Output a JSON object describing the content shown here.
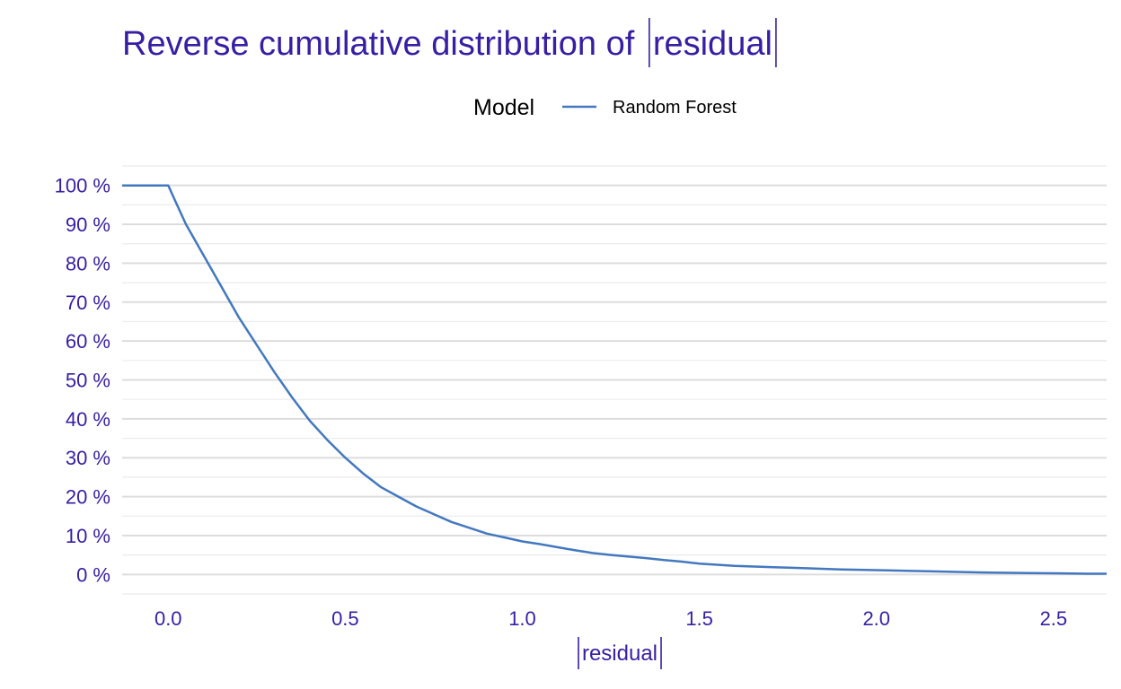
{
  "chart_data": {
    "type": "line",
    "title": "Reverse cumulative distribution of |residual|",
    "xlabel": "|residual|",
    "ylabel": "",
    "xlim": [
      -0.13,
      2.65
    ],
    "ylim": [
      -0.05,
      1.05
    ],
    "x_ticks": [
      0.0,
      0.5,
      1.0,
      1.5,
      2.0,
      2.5
    ],
    "x_tick_labels": [
      "0.0",
      "0.5",
      "1.0",
      "1.5",
      "2.0",
      "2.5"
    ],
    "y_ticks": [
      0,
      0.1,
      0.2,
      0.3,
      0.4,
      0.5,
      0.6,
      0.7,
      0.8,
      0.9,
      1.0
    ],
    "y_tick_labels": [
      "0 %",
      "10 %",
      "20 %",
      "30 %",
      "40 %",
      "50 %",
      "60 %",
      "70 %",
      "80 %",
      "90 %",
      "100 %"
    ],
    "grid": true,
    "legend": {
      "title": "Model",
      "position": "top"
    },
    "colors": {
      "title": "#371ea3",
      "series": "#4378bf"
    },
    "series": [
      {
        "name": "Random Forest",
        "color": "#4378bf",
        "x": [
          -0.13,
          0.0,
          0.02,
          0.05,
          0.1,
          0.15,
          0.2,
          0.25,
          0.3,
          0.35,
          0.4,
          0.45,
          0.5,
          0.55,
          0.6,
          0.65,
          0.7,
          0.75,
          0.8,
          0.85,
          0.9,
          0.95,
          1.0,
          1.05,
          1.1,
          1.15,
          1.2,
          1.25,
          1.3,
          1.35,
          1.4,
          1.45,
          1.5,
          1.55,
          1.6,
          1.7,
          1.8,
          1.9,
          2.0,
          2.1,
          2.2,
          2.3,
          2.4,
          2.5,
          2.6,
          2.65
        ],
        "values": [
          1.0,
          1.0,
          0.96,
          0.9,
          0.82,
          0.74,
          0.66,
          0.59,
          0.52,
          0.455,
          0.395,
          0.345,
          0.3,
          0.26,
          0.225,
          0.2,
          0.175,
          0.155,
          0.135,
          0.12,
          0.105,
          0.095,
          0.085,
          0.078,
          0.07,
          0.062,
          0.055,
          0.05,
          0.046,
          0.042,
          0.037,
          0.033,
          0.028,
          0.025,
          0.022,
          0.019,
          0.016,
          0.013,
          0.011,
          0.009,
          0.007,
          0.005,
          0.004,
          0.003,
          0.002,
          0.002
        ]
      }
    ]
  }
}
